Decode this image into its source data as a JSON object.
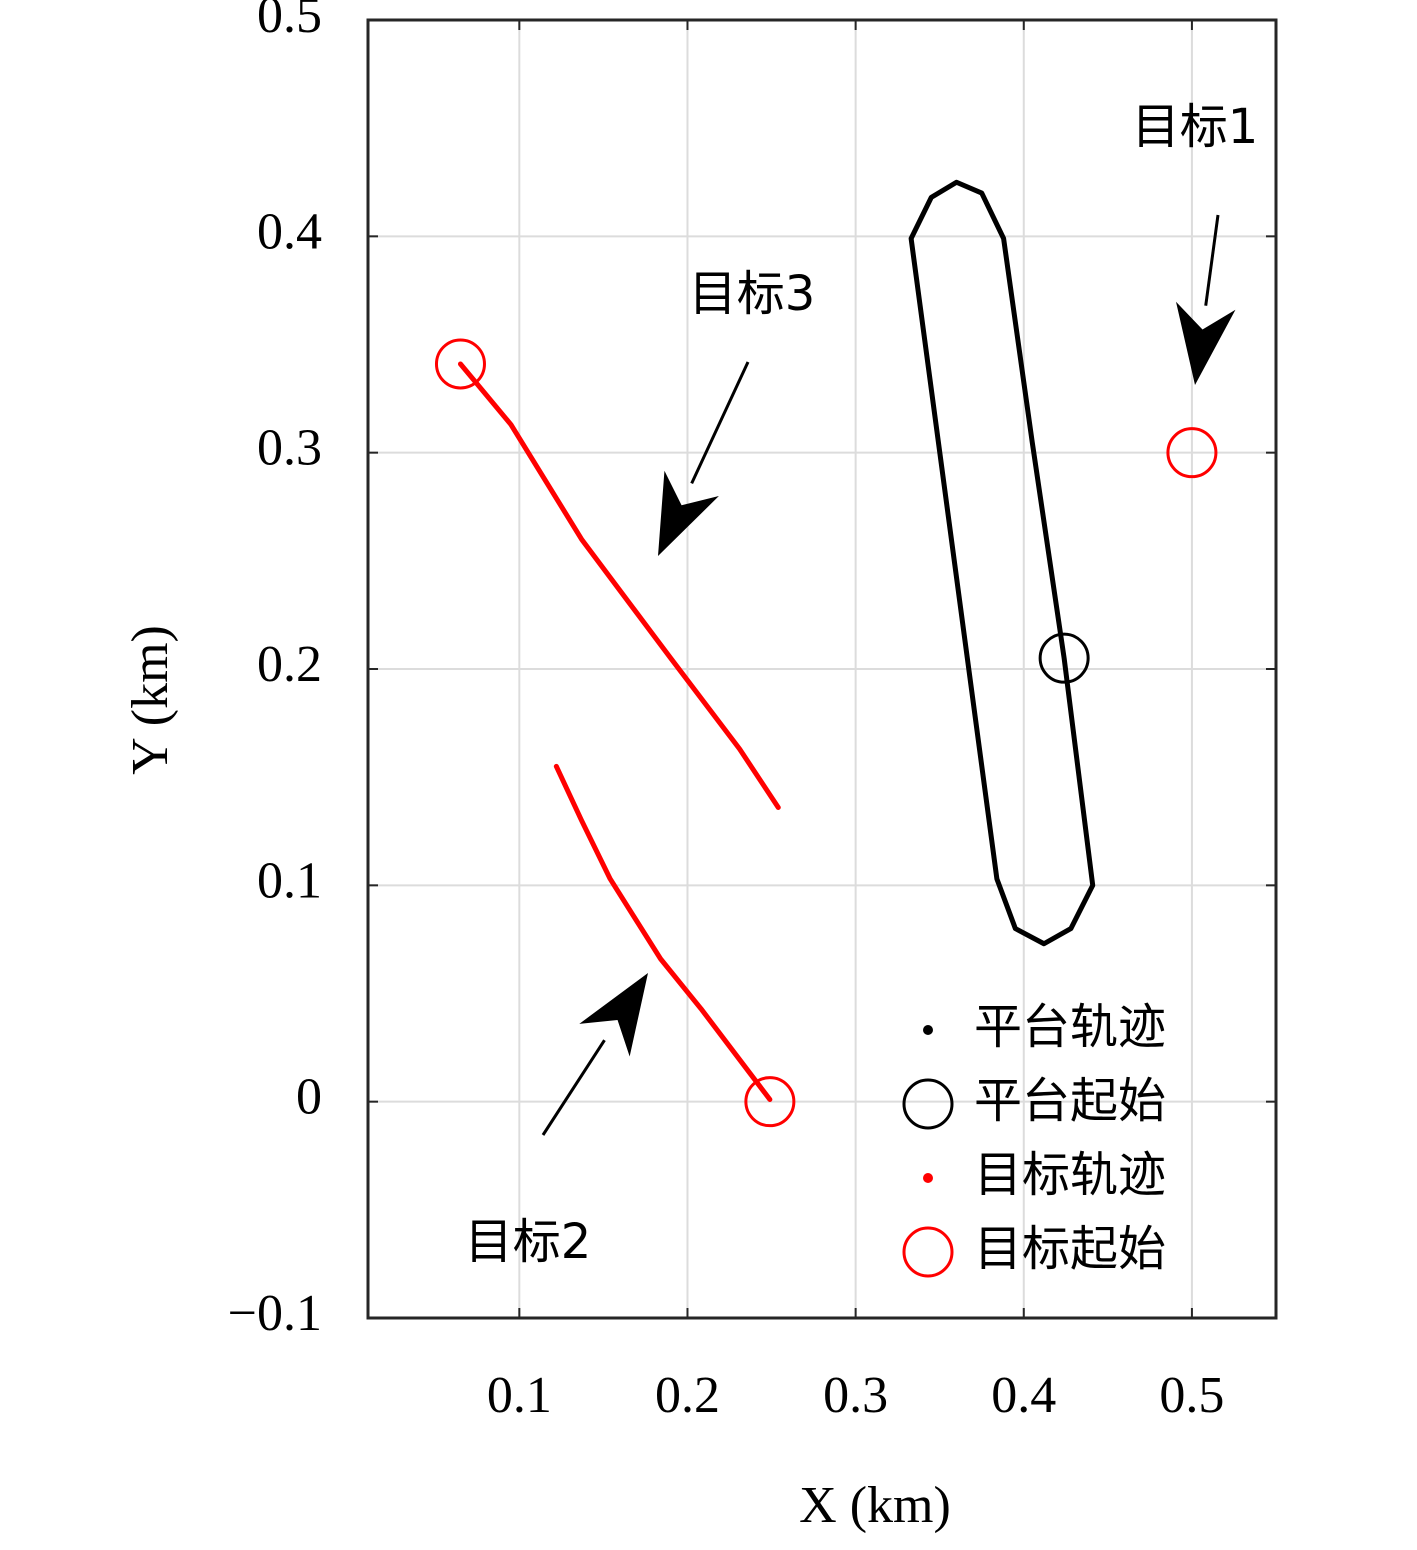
{
  "chart_data": {
    "type": "line",
    "xlabel": "X (km)",
    "ylabel": "Y (km)",
    "xlim": [
      0.01,
      0.55
    ],
    "ylim": [
      -0.1,
      0.5
    ],
    "xticks": [
      0.1,
      0.2,
      0.3,
      0.4,
      0.5
    ],
    "yticks": [
      {
        "value": -0.1,
        "label": "−0.1"
      },
      0,
      0.1,
      0.2,
      0.3,
      0.4,
      0.5
    ],
    "grid": true,
    "legend": "lower right",
    "annotations": [
      "目标1",
      "目标2",
      "目标3"
    ],
    "series": [
      {
        "name": "平台轨迹",
        "color": "#000000",
        "style": "line",
        "x": [
          0.424,
          0.405,
          0.388,
          0.375,
          0.36,
          0.345,
          0.333,
          0.384,
          0.395,
          0.412,
          0.428,
          0.441,
          0.424
        ],
        "values": [
          0.205,
          0.305,
          0.399,
          0.42,
          0.425,
          0.418,
          0.399,
          0.103,
          0.08,
          0.073,
          0.08,
          0.1,
          0.205
        ]
      },
      {
        "name": "平台起始",
        "color": "#000000",
        "style": "circle",
        "x": [
          0.424
        ],
        "values": [
          0.205
        ]
      },
      {
        "name": "目标轨迹",
        "color": "#ff0000",
        "style": "line",
        "x": [
          0.249,
          0.208,
          0.184,
          0.154,
          0.137,
          0.122,
          null,
          0.065,
          0.095,
          0.137,
          0.19,
          0.231,
          0.254
        ],
        "values": [
          0.001,
          0.043,
          0.066,
          0.103,
          0.13,
          0.155,
          null,
          0.341,
          0.313,
          0.26,
          0.205,
          0.163,
          0.136
        ]
      },
      {
        "name": "目标起始",
        "color": "#ff0000",
        "style": "circle",
        "x": [
          0.5,
          0.249,
          0.065
        ],
        "values": [
          0.3,
          0,
          0.341
        ]
      }
    ]
  }
}
